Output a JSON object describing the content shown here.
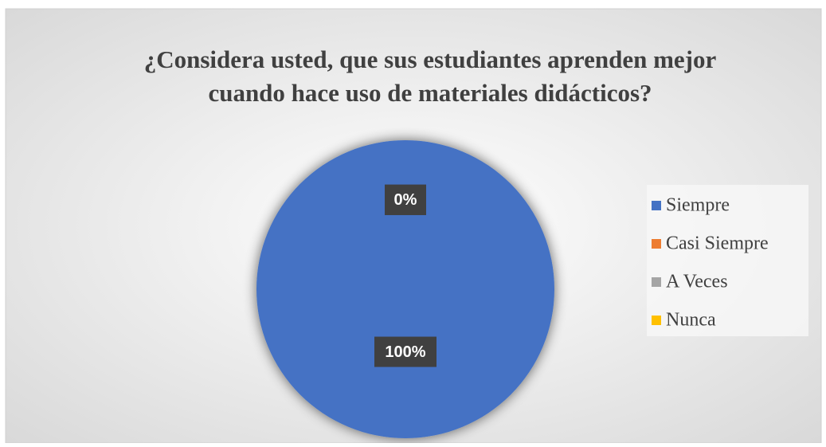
{
  "chart_data": {
    "type": "pie",
    "title": "¿Considera usted, que sus estudiantes aprenden mejor cuando hace uso de materiales didácticos?",
    "categories": [
      "Siempre",
      "Casi Siempre",
      "A Veces",
      "Nunca"
    ],
    "values": [
      100,
      0,
      0,
      0
    ],
    "value_labels": [
      "100%",
      "0%",
      "0%",
      "0%"
    ],
    "colors": [
      "#4472c4",
      "#ed7d31",
      "#a5a5a5",
      "#ffc000"
    ],
    "legend": "right"
  }
}
